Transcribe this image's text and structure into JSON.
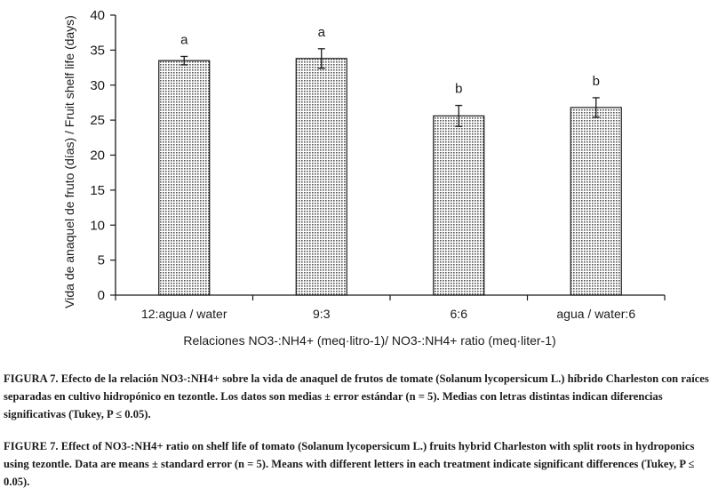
{
  "chart_data": {
    "type": "bar",
    "categories": [
      "12:agua / water",
      "9:3",
      "6:6",
      "agua / water:6"
    ],
    "values": [
      33.5,
      33.8,
      25.6,
      26.8
    ],
    "errors": [
      0.6,
      1.4,
      1.5,
      1.4
    ],
    "letters": [
      "a",
      "a",
      "b",
      "b"
    ],
    "ylabel": "Vida de anaquel de fruto (días) / Fruit shelf life (days)",
    "xlabel": "Relaciones NO3-:NH4+ (meq·litro-1)/ NO3-:NH4+ ratio (meq·liter-1)",
    "ylim": [
      0,
      40
    ],
    "yticks": [
      0,
      5,
      10,
      15,
      20,
      25,
      30,
      35,
      40
    ]
  },
  "captions": {
    "es_label": "FIGURA 7.",
    "es_text": "Efecto de la relación NO3-:NH4+ sobre la vida de anaquel de frutos de tomate (Solanum lycopersicum L.) híbrido Charleston con raíces separadas en cultivo hidropónico en tezontle. Los datos son medias ± error estándar (n = 5). Medias con letras distintas indican diferencias significativas (Tukey, P ≤ 0.05).",
    "en_label": "FIGURE 7.",
    "en_text": "Effect of NO3-:NH4+ ratio on shelf life of tomato (Solanum lycopersicum L.) fruits hybrid Charleston with split roots in hydroponics using tezontle. Data are means ± standard error (n = 5). Means with different letters in each treatment indicate significant differences (Tukey, P ≤ 0.05)."
  },
  "colors": {
    "bar_fill": "#d9d9d9",
    "bar_stroke": "#1a1a1a",
    "axis": "#1a1a1a"
  }
}
